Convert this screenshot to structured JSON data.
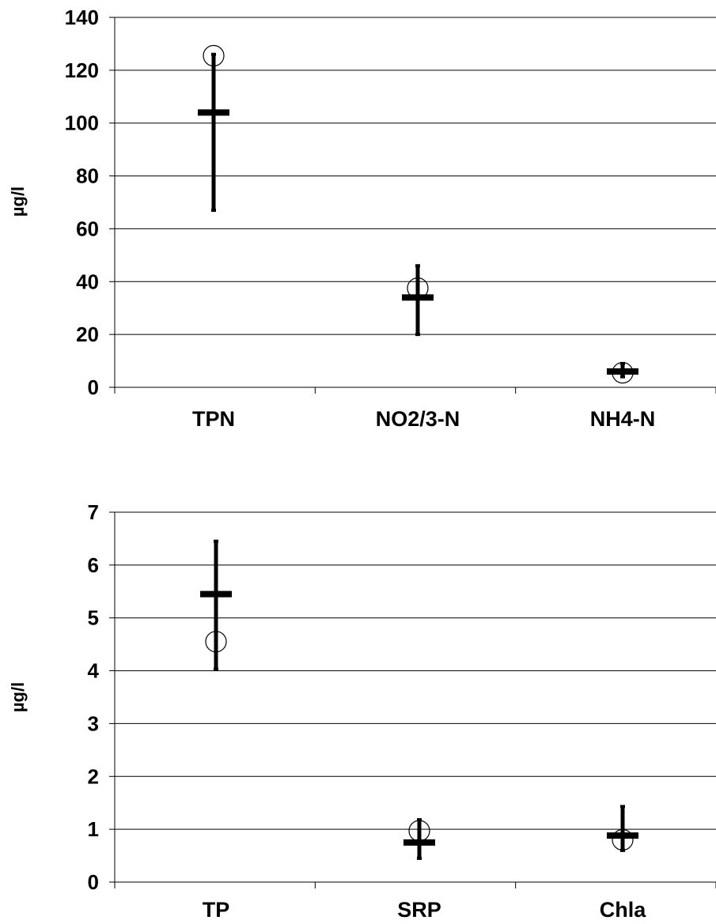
{
  "chart_data": [
    {
      "type": "scatter",
      "ylabel": "µg/l",
      "ylim": [
        0,
        140
      ],
      "yticks": [
        "0",
        "20",
        "40",
        "60",
        "80",
        "100",
        "120",
        "140"
      ],
      "categories": [
        "TPN",
        "NO2/3-N",
        "NH4-N"
      ],
      "grid": "horizontal",
      "series": [
        {
          "mean": [
            104,
            34,
            6
          ],
          "low": [
            67,
            20,
            4
          ],
          "high": [
            126,
            46,
            9
          ],
          "point": [
            125.5,
            37.5,
            5.5
          ]
        }
      ]
    },
    {
      "type": "scatter",
      "ylabel": "µg/l",
      "ylim": [
        0,
        7
      ],
      "yticks": [
        "0",
        "1",
        "2",
        "3",
        "4",
        "5",
        "6",
        "7"
      ],
      "categories": [
        "TP",
        "SRP",
        "Chla"
      ],
      "grid": "horizontal",
      "series": [
        {
          "mean": [
            5.45,
            0.75,
            0.88
          ],
          "low": [
            4.03,
            0.45,
            0.6
          ],
          "high": [
            6.45,
            1.18,
            1.43
          ],
          "point": [
            4.55,
            0.97,
            0.8
          ]
        }
      ]
    }
  ]
}
